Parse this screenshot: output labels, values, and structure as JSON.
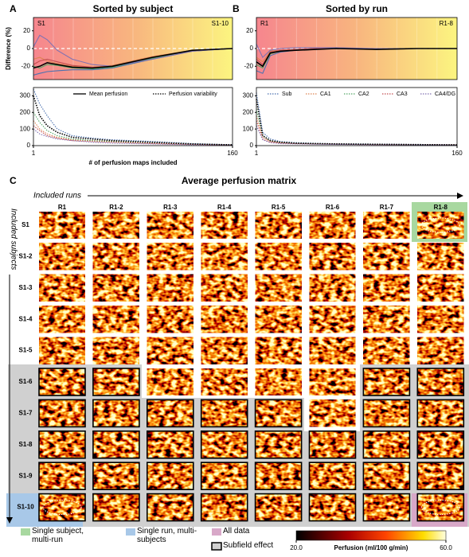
{
  "chart_data": [
    {
      "type": "line",
      "panel": "A",
      "title": "Sorted by subject",
      "y_label": "Difference (%)",
      "band_labels": [
        "S1",
        "S1-10"
      ],
      "x": [
        1,
        6,
        12,
        20,
        32,
        48,
        64,
        96,
        128,
        160
      ],
      "xlim": [
        1,
        160
      ],
      "ylim": [
        -35,
        35
      ],
      "yticks": [
        -20,
        0,
        20
      ],
      "hline": 0,
      "series": [
        {
          "color": "#4c72b0",
          "values": [
            -30,
            -28,
            -26,
            -25,
            -24,
            -24,
            -22,
            -12,
            -3,
            0
          ]
        },
        {
          "color": "#dd8452",
          "values": [
            -12,
            -10,
            -14,
            -17,
            -20,
            -21,
            -19,
            -9,
            -2,
            0
          ]
        },
        {
          "color": "#55a868",
          "values": [
            -20,
            -22,
            -18,
            -19,
            -22,
            -23,
            -21,
            -11,
            -2,
            0
          ]
        },
        {
          "color": "#c44e52",
          "values": [
            -18,
            -14,
            -12,
            -15,
            -19,
            -21,
            -20,
            -10,
            -2,
            0
          ]
        },
        {
          "color": "#8172b2",
          "values": [
            2,
            15,
            10,
            -2,
            -12,
            -18,
            -20,
            -12,
            -3,
            0
          ]
        },
        {
          "color": "#000000",
          "values": [
            -22,
            -20,
            -16,
            -18,
            -21,
            -22,
            -20,
            -10,
            -2,
            0
          ]
        }
      ]
    },
    {
      "type": "line",
      "x_label": "# of perfusion maps included",
      "x": [
        1,
        6,
        12,
        20,
        32,
        48,
        64,
        96,
        128,
        160
      ],
      "xlim": [
        1,
        160
      ],
      "xticks": [
        1,
        160
      ],
      "ylim": [
        0,
        350
      ],
      "yticks": [
        0,
        100,
        200,
        300
      ],
      "legend_items": [
        {
          "label": "Mean perfusion",
          "style": "solid"
        },
        {
          "label": "Perfusion variability",
          "style": "dotted"
        }
      ],
      "series": [
        {
          "color": "#4c72b0",
          "dash": true,
          "values": [
            340,
            250,
            180,
            100,
            60,
            45,
            35,
            25,
            12,
            5
          ]
        },
        {
          "color": "#dd8452",
          "dash": true,
          "values": [
            150,
            100,
            70,
            50,
            35,
            30,
            25,
            15,
            8,
            4
          ]
        },
        {
          "color": "#55a868",
          "dash": true,
          "values": [
            200,
            140,
            90,
            60,
            40,
            30,
            25,
            18,
            10,
            5
          ]
        },
        {
          "color": "#c44e52",
          "dash": true,
          "values": [
            120,
            90,
            60,
            45,
            30,
            25,
            20,
            12,
            7,
            3
          ]
        },
        {
          "color": "#8172b2",
          "dash": true,
          "values": [
            100,
            70,
            55,
            40,
            30,
            20,
            15,
            10,
            5,
            3
          ]
        },
        {
          "color": "#000000",
          "dash": true,
          "values": [
            300,
            180,
            120,
            80,
            50,
            40,
            30,
            20,
            10,
            5
          ]
        }
      ]
    },
    {
      "type": "line",
      "panel": "B",
      "title": "Sorted by run",
      "band_labels": [
        "R1",
        "R1-8"
      ],
      "x": [
        1,
        6,
        12,
        20,
        32,
        48,
        64,
        96,
        128,
        160
      ],
      "xlim": [
        1,
        160
      ],
      "ylim": [
        -35,
        35
      ],
      "yticks": [
        -20,
        0,
        20
      ],
      "hline": 0,
      "series": [
        {
          "color": "#4c72b0",
          "values": [
            -25,
            -28,
            -8,
            -4,
            -2,
            -1,
            1,
            -1,
            0,
            0
          ]
        },
        {
          "color": "#dd8452",
          "values": [
            -10,
            -15,
            -3,
            -2,
            -1,
            0,
            0,
            -1,
            0,
            0
          ]
        },
        {
          "color": "#55a868",
          "values": [
            -18,
            -22,
            -6,
            -3,
            -2,
            -1,
            0,
            -1,
            0,
            0
          ]
        },
        {
          "color": "#c44e52",
          "values": [
            -12,
            -18,
            -4,
            -2,
            -1,
            0,
            0,
            0,
            0,
            0
          ]
        },
        {
          "color": "#8172b2",
          "values": [
            5,
            -10,
            -2,
            0,
            1,
            1,
            1,
            0,
            0,
            0
          ]
        },
        {
          "color": "#000000",
          "values": [
            -15,
            -20,
            -5,
            -3,
            -2,
            -1,
            0,
            -1,
            0,
            0
          ]
        }
      ]
    },
    {
      "type": "line",
      "x": [
        1,
        6,
        12,
        20,
        32,
        48,
        64,
        96,
        128,
        160
      ],
      "xlim": [
        1,
        160
      ],
      "xticks": [
        1,
        160
      ],
      "ylim": [
        0,
        350
      ],
      "yticks": [
        0,
        100,
        200,
        300
      ],
      "series": [
        {
          "name": "Sub",
          "color": "#4c72b0",
          "dash": true,
          "values": [
            320,
            80,
            40,
            25,
            18,
            14,
            12,
            9,
            7,
            5
          ]
        },
        {
          "name": "CA1",
          "color": "#dd8452",
          "dash": true,
          "values": [
            180,
            50,
            25,
            18,
            12,
            10,
            8,
            6,
            5,
            4
          ]
        },
        {
          "name": "CA2",
          "color": "#55a868",
          "dash": true,
          "values": [
            220,
            60,
            30,
            20,
            15,
            12,
            9,
            7,
            5,
            4
          ]
        },
        {
          "name": "CA3",
          "color": "#c44e52",
          "dash": true,
          "values": [
            150,
            40,
            20,
            15,
            12,
            10,
            8,
            6,
            5,
            4
          ]
        },
        {
          "name": "CA4/DG",
          "color": "#8172b2",
          "dash": true,
          "values": [
            120,
            35,
            18,
            12,
            10,
            8,
            7,
            5,
            4,
            3
          ]
        },
        {
          "color": "#000000",
          "dash": true,
          "values": [
            280,
            60,
            30,
            20,
            15,
            12,
            10,
            8,
            6,
            5
          ]
        }
      ]
    }
  ],
  "matrix": {
    "panel": "C",
    "title": "Average perfusion matrix",
    "x_label": "Included runs",
    "y_label": "Included subjects",
    "columns": [
      "R1",
      "R1-2",
      "R1-3",
      "R1-4",
      "R1-5",
      "R1-6",
      "R1-7",
      "R1-8"
    ],
    "rows": [
      "S1",
      "S1-2",
      "S1-3",
      "S1-4",
      "S1-5",
      "S1-6",
      "S1-7",
      "S1-8",
      "S1-9",
      "S1-10"
    ]
  },
  "legend": {
    "items": [
      "Single subject, multi-run",
      "Single run, multi-subjects",
      "All data",
      "Subfield effect"
    ],
    "colorbar": {
      "label": "Perfusion (ml/100 g/min)",
      "lim": [
        20,
        60
      ],
      "ticks": [
        {
          "value": 20,
          "label": "20.0"
        },
        {
          "value": 60,
          "label": "60.0"
        }
      ]
    }
  }
}
